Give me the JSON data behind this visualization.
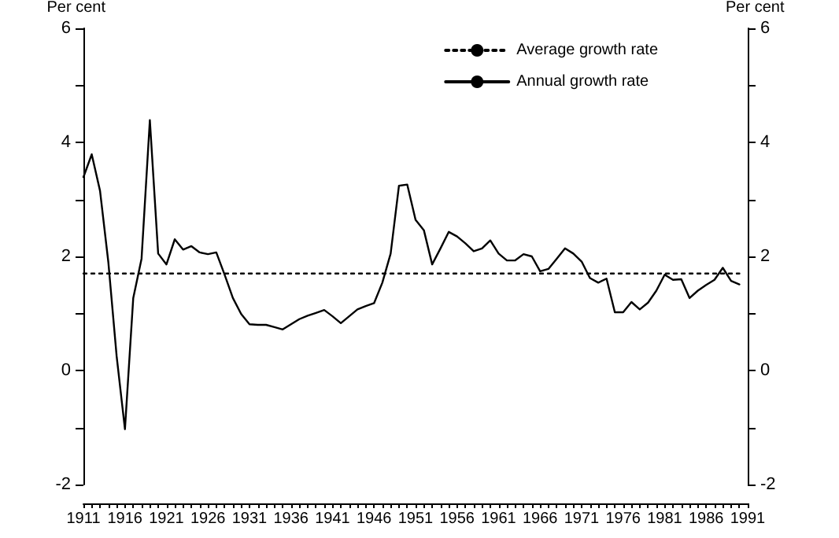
{
  "chart_data": {
    "type": "line",
    "ylabel": "Per cent",
    "y2label": "Per cent",
    "legend": "top right",
    "marker": "none",
    "grid": false,
    "xlim": [
      1911,
      1991
    ],
    "ylim": [
      -2,
      6
    ],
    "y2lim": [
      -2,
      6
    ],
    "yticks": [
      -2,
      {
        "value": -1,
        "label": null
      },
      0,
      {
        "value": 1,
        "label": null
      },
      2,
      {
        "value": 3,
        "label": null
      },
      4,
      {
        "value": 5,
        "label": null
      },
      6
    ],
    "y2ticks": [
      -2,
      {
        "value": -1,
        "label": null
      },
      0,
      {
        "value": 1,
        "label": null
      },
      2,
      {
        "value": 3,
        "label": null
      },
      4,
      {
        "value": 5,
        "label": null
      },
      6
    ],
    "xticks": [
      1911,
      {
        "value": 1912,
        "label": null
      },
      {
        "value": 1913,
        "label": null
      },
      {
        "value": 1914,
        "label": null
      },
      {
        "value": 1915,
        "label": null
      },
      1916,
      {
        "value": 1917,
        "label": null
      },
      {
        "value": 1918,
        "label": null
      },
      {
        "value": 1919,
        "label": null
      },
      {
        "value": 1920,
        "label": null
      },
      1921,
      {
        "value": 1922,
        "label": null
      },
      {
        "value": 1923,
        "label": null
      },
      {
        "value": 1924,
        "label": null
      },
      {
        "value": 1925,
        "label": null
      },
      1926,
      {
        "value": 1927,
        "label": null
      },
      {
        "value": 1928,
        "label": null
      },
      {
        "value": 1929,
        "label": null
      },
      {
        "value": 1930,
        "label": null
      },
      1931,
      {
        "value": 1932,
        "label": null
      },
      {
        "value": 1933,
        "label": null
      },
      {
        "value": 1934,
        "label": null
      },
      {
        "value": 1935,
        "label": null
      },
      1936,
      {
        "value": 1937,
        "label": null
      },
      {
        "value": 1938,
        "label": null
      },
      {
        "value": 1939,
        "label": null
      },
      {
        "value": 1940,
        "label": null
      },
      1941,
      {
        "value": 1942,
        "label": null
      },
      {
        "value": 1943,
        "label": null
      },
      {
        "value": 1944,
        "label": null
      },
      {
        "value": 1945,
        "label": null
      },
      1946,
      {
        "value": 1947,
        "label": null
      },
      {
        "value": 1948,
        "label": null
      },
      {
        "value": 1949,
        "label": null
      },
      {
        "value": 1950,
        "label": null
      },
      1951,
      {
        "value": 1952,
        "label": null
      },
      {
        "value": 1953,
        "label": null
      },
      {
        "value": 1954,
        "label": null
      },
      {
        "value": 1955,
        "label": null
      },
      1956,
      {
        "value": 1957,
        "label": null
      },
      {
        "value": 1958,
        "label": null
      },
      {
        "value": 1959,
        "label": null
      },
      {
        "value": 1960,
        "label": null
      },
      1961,
      {
        "value": 1962,
        "label": null
      },
      {
        "value": 1963,
        "label": null
      },
      {
        "value": 1964,
        "label": null
      },
      {
        "value": 1965,
        "label": null
      },
      1966,
      {
        "value": 1967,
        "label": null
      },
      {
        "value": 1968,
        "label": null
      },
      {
        "value": 1969,
        "label": null
      },
      {
        "value": 1970,
        "label": null
      },
      1971,
      {
        "value": 1972,
        "label": null
      },
      {
        "value": 1973,
        "label": null
      },
      {
        "value": 1974,
        "label": null
      },
      {
        "value": 1975,
        "label": null
      },
      1976,
      {
        "value": 1977,
        "label": null
      },
      {
        "value": 1978,
        "label": null
      },
      {
        "value": 1979,
        "label": null
      },
      {
        "value": 1980,
        "label": null
      },
      1981,
      {
        "value": 1982,
        "label": null
      },
      {
        "value": 1983,
        "label": null
      },
      {
        "value": 1984,
        "label": null
      },
      {
        "value": 1985,
        "label": null
      },
      1986,
      {
        "value": 1987,
        "label": null
      },
      {
        "value": 1988,
        "label": null
      },
      {
        "value": 1989,
        "label": null
      },
      {
        "value": 1990,
        "label": null
      },
      1991
    ],
    "series": [
      {
        "name": "Average growth rate",
        "color": "#000000",
        "line_style": "dotted",
        "x": [
          1911,
          1990
        ],
        "values": [
          1.7,
          1.7
        ]
      },
      {
        "name": "Annual growth rate",
        "color": "#000000",
        "line_style": "solid",
        "x": [
          1911,
          1912,
          1913,
          1914,
          1915,
          1916,
          1917,
          1918,
          1919,
          1920,
          1921,
          1922,
          1923,
          1924,
          1925,
          1926,
          1927,
          1928,
          1929,
          1930,
          1931,
          1932,
          1933,
          1934,
          1935,
          1936,
          1937,
          1938,
          1939,
          1940,
          1941,
          1942,
          1943,
          1944,
          1945,
          1946,
          1947,
          1948,
          1949,
          1950,
          1951,
          1952,
          1953,
          1954,
          1955,
          1956,
          1957,
          1958,
          1959,
          1960,
          1961,
          1962,
          1963,
          1964,
          1965,
          1966,
          1967,
          1968,
          1969,
          1970,
          1971,
          1972,
          1973,
          1974,
          1975,
          1976,
          1977,
          1978,
          1979,
          1980,
          1981,
          1982,
          1983,
          1984,
          1985,
          1986,
          1987,
          1988,
          1989,
          1990
        ],
        "values": [
          3.39,
          3.79,
          3.15,
          1.9,
          0.25,
          -1.03,
          1.27,
          1.96,
          4.39,
          2.05,
          1.86,
          2.3,
          2.12,
          2.18,
          2.07,
          2.04,
          2.07,
          1.68,
          1.27,
          0.99,
          0.81,
          0.8,
          0.8,
          0.76,
          0.72,
          0.81,
          0.9,
          0.96,
          1.01,
          1.06,
          0.95,
          0.83,
          0.95,
          1.07,
          1.13,
          1.18,
          1.54,
          2.05,
          3.24,
          3.26,
          2.64,
          2.46,
          1.86,
          2.14,
          2.43,
          2.35,
          2.23,
          2.09,
          2.14,
          2.28,
          2.05,
          1.93,
          1.93,
          2.04,
          2.0,
          1.74,
          1.78,
          1.96,
          2.14,
          2.05,
          1.91,
          1.62,
          1.54,
          1.61,
          1.02,
          1.02,
          1.2,
          1.07,
          1.19,
          1.4,
          1.68,
          1.59,
          1.6,
          1.27,
          1.4,
          1.5,
          1.59,
          1.8,
          1.57,
          1.51
        ]
      }
    ]
  }
}
